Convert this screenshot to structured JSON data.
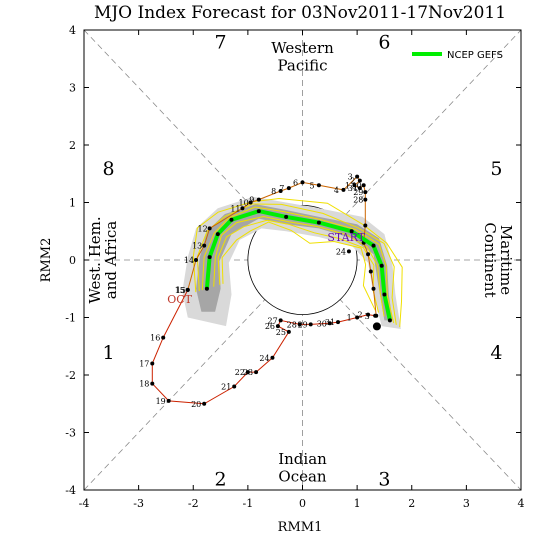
{
  "chart_data": {
    "type": "line",
    "title": "MJO Index Forecast for 03Nov2011-17Nov2011",
    "xlabel": "RMM1",
    "ylabel": "RMM2",
    "xlim": [
      -4,
      4
    ],
    "ylim": [
      -4,
      4
    ],
    "xticks": [
      "-4",
      "-3",
      "-2",
      "-1",
      "0",
      "1",
      "2",
      "3",
      "4"
    ],
    "yticks": [
      "-4",
      "-3",
      "-2",
      "-1",
      "0",
      "1",
      "2",
      "3",
      "4"
    ],
    "unit_circle_radius": 1,
    "legend": {
      "position": "top-right",
      "entries": [
        {
          "name": "NCEP GEFS",
          "color": "#00ee00"
        }
      ]
    },
    "phases": [
      "1",
      "2",
      "3",
      "4",
      "5",
      "6",
      "7",
      "8"
    ],
    "region_labels": {
      "top": [
        "Western",
        "Pacific"
      ],
      "bottom": [
        "Indian",
        "Ocean"
      ],
      "left": [
        "West. Hem.",
        "and Africa"
      ],
      "right": [
        "Maritime",
        "Continent"
      ]
    },
    "month_labels": [
      {
        "text": "OCT",
        "x": -2.25,
        "y": -0.75,
        "color": "#c0392b"
      },
      {
        "text": "START",
        "x": 0.8,
        "y": 0.33,
        "color": "#6a0dad"
      }
    ],
    "observed": {
      "color": "#cc2200",
      "points": [
        {
          "label": "15",
          "x": -2.1,
          "y": -0.52
        },
        {
          "label": "16",
          "x": -2.55,
          "y": -1.35
        },
        {
          "label": "17",
          "x": -2.75,
          "y": -1.8
        },
        {
          "label": "18",
          "x": -2.75,
          "y": -2.15
        },
        {
          "label": "19",
          "x": -2.45,
          "y": -2.45
        },
        {
          "label": "20",
          "x": -1.8,
          "y": -2.5
        },
        {
          "label": "21",
          "x": -1.25,
          "y": -2.2
        },
        {
          "label": "22",
          "x": -1.0,
          "y": -1.95
        },
        {
          "label": "23",
          "x": -0.85,
          "y": -1.95
        },
        {
          "label": "24",
          "x": -0.55,
          "y": -1.7
        },
        {
          "label": "25",
          "x": -0.25,
          "y": -1.25
        },
        {
          "label": "26",
          "x": -0.45,
          "y": -1.15
        },
        {
          "label": "27",
          "x": -0.4,
          "y": -1.05
        },
        {
          "label": "28",
          "x": -0.05,
          "y": -1.12
        },
        {
          "label": "29",
          "x": 0.15,
          "y": -1.12
        },
        {
          "label": "30",
          "x": 0.5,
          "y": -1.1
        },
        {
          "label": "31",
          "x": 0.65,
          "y": -1.08
        },
        {
          "label": "1",
          "x": 1.0,
          "y": -1.0
        },
        {
          "label": "2",
          "x": 1.2,
          "y": -0.95
        },
        {
          "label": "3",
          "x": 1.33,
          "y": -0.97
        }
      ]
    },
    "forecast_trace": {
      "color": "#cc6600",
      "points": [
        {
          "label": "",
          "x": 1.35,
          "y": -0.97
        },
        {
          "label": "",
          "x": 1.3,
          "y": -0.5
        },
        {
          "label": "",
          "x": 1.25,
          "y": -0.2
        },
        {
          "label": "",
          "x": 1.2,
          "y": 0.1
        },
        {
          "label": "",
          "x": 1.12,
          "y": 0.3
        },
        {
          "label": "",
          "x": 1.15,
          "y": 0.6
        },
        {
          "label": "28",
          "x": 1.15,
          "y": 1.05
        },
        {
          "label": "29",
          "x": 1.15,
          "y": 1.18
        },
        {
          "label": "30",
          "x": 1.12,
          "y": 1.3
        },
        {
          "label": "31",
          "x": 1.05,
          "y": 1.25
        },
        {
          "label": "1",
          "x": 0.95,
          "y": 1.3
        },
        {
          "label": "2",
          "x": 1.05,
          "y": 1.38
        },
        {
          "label": "3",
          "x": 1.0,
          "y": 1.45
        },
        {
          "label": "4",
          "x": 0.75,
          "y": 1.22
        },
        {
          "label": "5",
          "x": 0.3,
          "y": 1.3
        },
        {
          "label": "6",
          "x": 0.0,
          "y": 1.35
        },
        {
          "label": "7",
          "x": -0.25,
          "y": 1.25
        },
        {
          "label": "8",
          "x": -0.4,
          "y": 1.2
        },
        {
          "label": "9",
          "x": -0.8,
          "y": 1.05
        },
        {
          "label": "10",
          "x": -0.95,
          "y": 1.0
        },
        {
          "label": "11",
          "x": -1.1,
          "y": 0.9
        },
        {
          "label": "12",
          "x": -1.7,
          "y": 0.55
        },
        {
          "label": "13",
          "x": -1.8,
          "y": 0.25
        },
        {
          "label": "14",
          "x": -1.95,
          "y": 0.0
        },
        {
          "label": "15",
          "x": -2.1,
          "y": -0.52
        }
      ]
    },
    "forecast_start": {
      "label": "24",
      "x": 0.85,
      "y": 0.15
    },
    "gefs_mean": {
      "name": "NCEP GEFS",
      "color": "#00ee00",
      "points": [
        {
          "x": 1.6,
          "y": -1.05
        },
        {
          "x": 1.5,
          "y": -0.6
        },
        {
          "x": 1.45,
          "y": -0.1
        },
        {
          "x": 1.3,
          "y": 0.25
        },
        {
          "x": 0.9,
          "y": 0.5
        },
        {
          "x": 0.3,
          "y": 0.65
        },
        {
          "x": -0.3,
          "y": 0.75
        },
        {
          "x": -0.8,
          "y": 0.85
        },
        {
          "x": -1.3,
          "y": 0.7
        },
        {
          "x": -1.55,
          "y": 0.45
        },
        {
          "x": -1.7,
          "y": 0.05
        },
        {
          "x": -1.75,
          "y": -0.5
        }
      ]
    },
    "spread_band": {
      "outer_color": "#d9d9d9",
      "inner_color": "#a6a6a6",
      "outer_upper": [
        [
          1.8,
          -1.2
        ],
        [
          1.7,
          -0.6
        ],
        [
          1.65,
          -0.1
        ],
        [
          1.5,
          0.45
        ],
        [
          1.1,
          0.75
        ],
        [
          0.3,
          0.9
        ],
        [
          -0.3,
          1.0
        ],
        [
          -0.9,
          1.1
        ],
        [
          -1.55,
          0.9
        ],
        [
          -1.95,
          0.55
        ],
        [
          -2.1,
          0.05
        ],
        [
          -2.2,
          -0.55
        ],
        [
          -2.1,
          -1.0
        ]
      ],
      "outer_lower": [
        [
          -1.4,
          -1.15
        ],
        [
          -1.3,
          -0.6
        ],
        [
          -1.35,
          -0.05
        ],
        [
          -1.15,
          0.35
        ],
        [
          -0.75,
          0.55
        ],
        [
          -0.3,
          0.5
        ],
        [
          0.3,
          0.4
        ],
        [
          0.9,
          0.25
        ],
        [
          1.2,
          -0.05
        ],
        [
          1.3,
          -0.6
        ],
        [
          1.45,
          -1.15
        ]
      ],
      "inner_upper": [
        [
          1.65,
          -1.05
        ],
        [
          1.58,
          -0.6
        ],
        [
          1.55,
          -0.1
        ],
        [
          1.4,
          0.38
        ],
        [
          1.0,
          0.62
        ],
        [
          0.3,
          0.75
        ],
        [
          -0.3,
          0.87
        ],
        [
          -0.85,
          0.97
        ],
        [
          -1.42,
          0.8
        ],
        [
          -1.75,
          0.5
        ],
        [
          -1.88,
          0.05
        ],
        [
          -1.95,
          -0.5
        ],
        [
          -1.85,
          -0.9
        ]
      ],
      "inner_lower": [
        [
          -1.6,
          -0.9
        ],
        [
          -1.5,
          -0.5
        ],
        [
          -1.52,
          -0.02
        ],
        [
          -1.3,
          0.45
        ],
        [
          -0.8,
          0.72
        ],
        [
          -0.3,
          0.62
        ],
        [
          0.3,
          0.55
        ],
        [
          0.9,
          0.38
        ],
        [
          1.3,
          0.1
        ],
        [
          1.38,
          -0.4
        ],
        [
          1.5,
          -1.05
        ]
      ]
    }
  }
}
